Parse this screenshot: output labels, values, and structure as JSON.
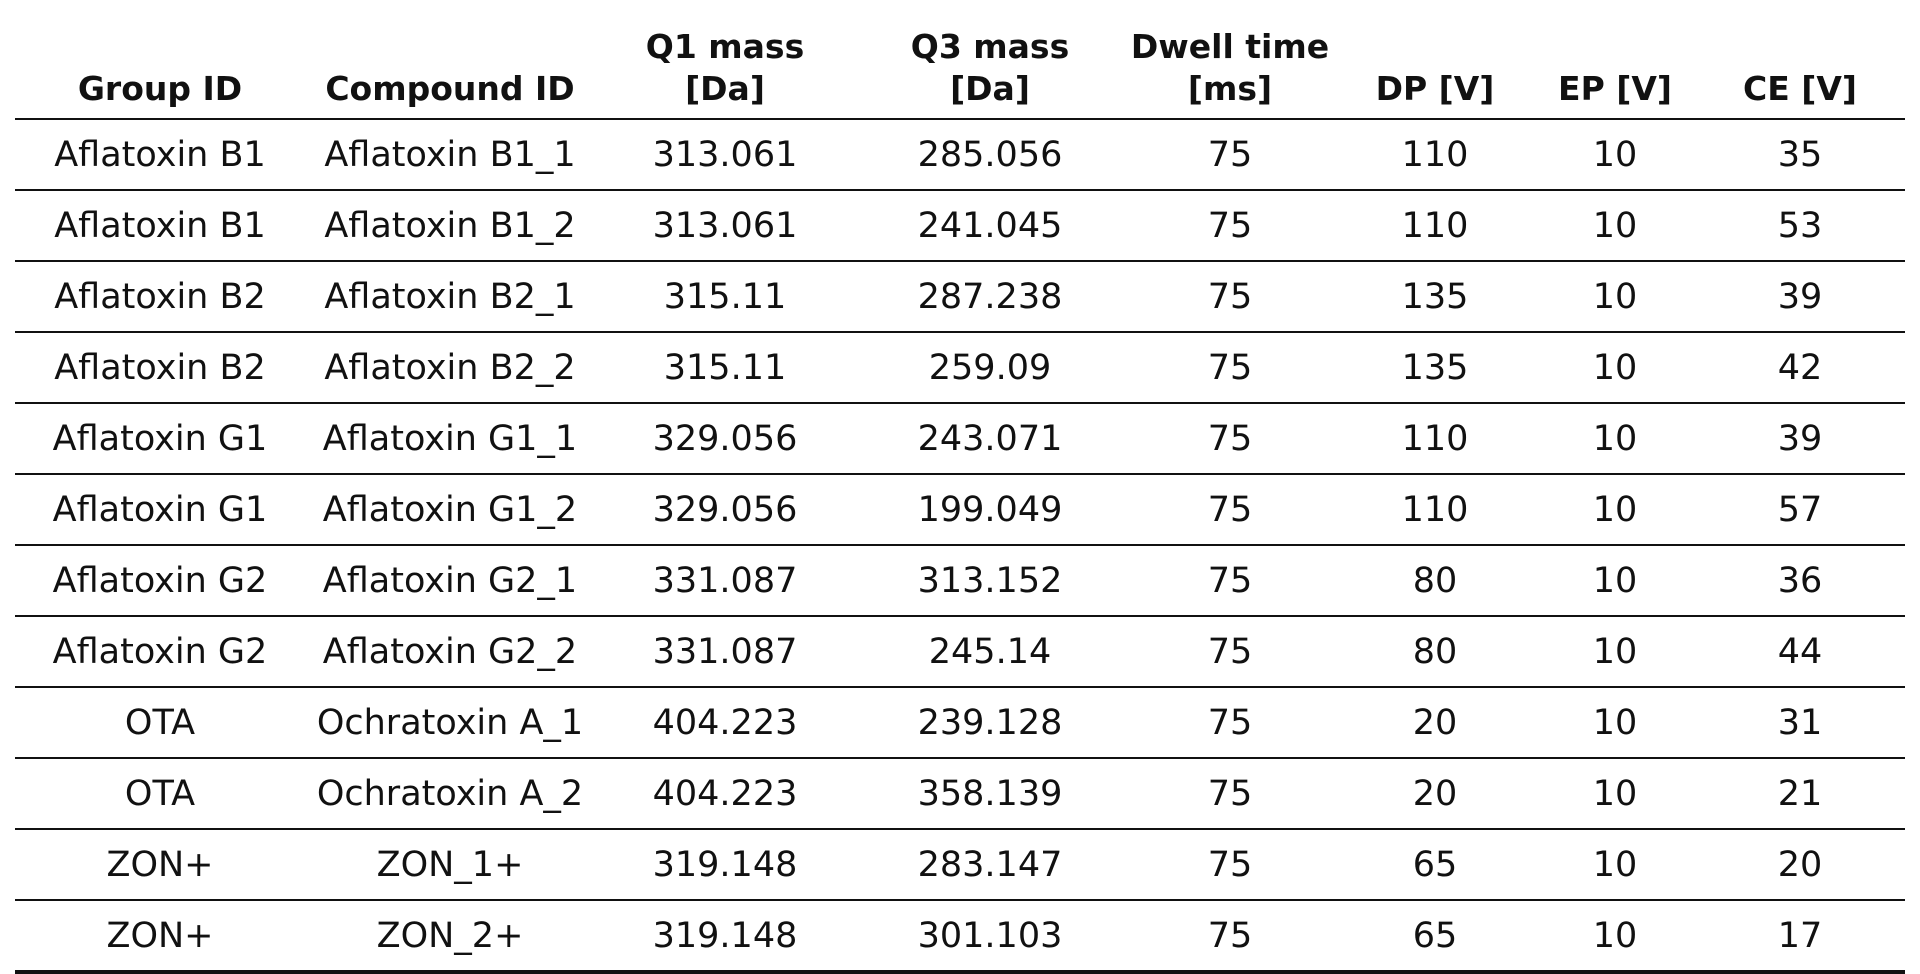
{
  "table": {
    "headers": [
      {
        "line1": "",
        "line2": "Group ID"
      },
      {
        "line1": "",
        "line2": "Compound ID"
      },
      {
        "line1": "Q1 mass",
        "line2": "[Da]"
      },
      {
        "line1": "Q3 mass",
        "line2": "[Da]"
      },
      {
        "line1": "Dwell time",
        "line2": "[ms]"
      },
      {
        "line1": "",
        "line2": "DP [V]"
      },
      {
        "line1": "",
        "line2": "EP [V]"
      },
      {
        "line1": "",
        "line2": "CE [V]"
      }
    ],
    "rows": [
      [
        "Aflatoxin B1",
        "Aflatoxin B1_1",
        "313.061",
        "285.056",
        "75",
        "110",
        "10",
        "35"
      ],
      [
        "Aflatoxin B1",
        "Aflatoxin B1_2",
        "313.061",
        "241.045",
        "75",
        "110",
        "10",
        "53"
      ],
      [
        "Aflatoxin B2",
        "Aflatoxin B2_1",
        "315.11",
        "287.238",
        "75",
        "135",
        "10",
        "39"
      ],
      [
        "Aflatoxin B2",
        "Aflatoxin B2_2",
        "315.11",
        "259.09",
        "75",
        "135",
        "10",
        "42"
      ],
      [
        "Aflatoxin G1",
        "Aflatoxin G1_1",
        "329.056",
        "243.071",
        "75",
        "110",
        "10",
        "39"
      ],
      [
        "Aflatoxin G1",
        "Aflatoxin G1_2",
        "329.056",
        "199.049",
        "75",
        "110",
        "10",
        "57"
      ],
      [
        "Aflatoxin G2",
        "Aflatoxin G2_1",
        "331.087",
        "313.152",
        "75",
        "80",
        "10",
        "36"
      ],
      [
        "Aflatoxin G2",
        "Aflatoxin G2_2",
        "331.087",
        "245.14",
        "75",
        "80",
        "10",
        "44"
      ],
      [
        "OTA",
        "Ochratoxin A_1",
        "404.223",
        "239.128",
        "75",
        "20",
        "10",
        "31"
      ],
      [
        "OTA",
        "Ochratoxin A_2",
        "404.223",
        "358.139",
        "75",
        "20",
        "10",
        "21"
      ],
      [
        "ZON+",
        "ZON_1+",
        "319.148",
        "283.147",
        "75",
        "65",
        "10",
        "20"
      ],
      [
        "ZON+",
        "ZON_2+",
        "319.148",
        "301.103",
        "75",
        "65",
        "10",
        "17"
      ]
    ]
  }
}
